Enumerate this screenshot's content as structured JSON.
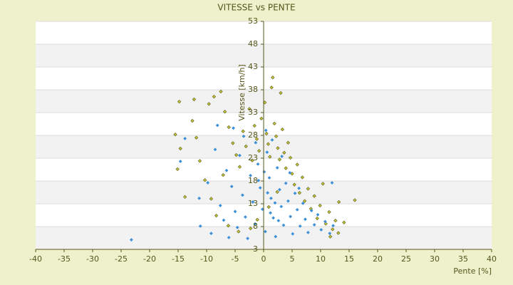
{
  "chart_data": {
    "type": "scatter",
    "title": "VITESSE vs PENTE",
    "x_label": "Pente [%]",
    "y_label": "Vitesse [km/h]",
    "xlim": [
      -40,
      40
    ],
    "xticks": [
      -40,
      -35,
      -30,
      -25,
      -20,
      -15,
      -10,
      -5,
      0,
      5,
      10,
      15,
      20,
      25,
      30,
      35,
      40
    ],
    "ylim": [
      3,
      53
    ],
    "yticks": [
      3,
      8,
      13,
      18,
      23,
      28,
      33,
      38,
      43,
      48,
      53
    ],
    "grid": true,
    "series": [
      {
        "color": "#c8c832",
        "x": [
          -14.8,
          -15.5,
          -14.6,
          -15.1,
          -12.2,
          -12.5,
          -11.8,
          -11.2,
          -10.3,
          -9.6,
          -8.7,
          -7.5,
          -6.8,
          -6.1,
          -5.4,
          -4.8,
          -4.2,
          -3.6,
          -3.1,
          -2.5,
          -2.0,
          -1.6,
          -1.2,
          -0.8,
          -0.4,
          0.2,
          0.5,
          0.8,
          1.1,
          1.4,
          1.6,
          1.9,
          2.2,
          2.5,
          2.8,
          3.0,
          3.3,
          3.6,
          3.9,
          4.3,
          4.7,
          5.0,
          5.4,
          5.9,
          6.3,
          6.8,
          7.2,
          7.8,
          8.3,
          8.9,
          9.4,
          9.9,
          10.4,
          10.9,
          11.5,
          12.1,
          12.6,
          13.2,
          14.1,
          16.0,
          -8.3,
          -6.2,
          -4.4,
          -2.3,
          -1.1,
          0.9,
          2.4,
          -9.2,
          -13.8,
          -7.1,
          13.1,
          11.7
        ],
        "values": [
          35.4,
          28.2,
          25.1,
          20.6,
          35.9,
          31.2,
          27.5,
          22.4,
          18.2,
          34.9,
          36.5,
          37.6,
          33.2,
          29.8,
          26.3,
          23.7,
          21.1,
          28.9,
          25.6,
          33.8,
          22.5,
          30.1,
          27.2,
          24.6,
          31.7,
          35.2,
          28.4,
          26.1,
          23.3,
          38.5,
          40.7,
          30.6,
          27.8,
          25.2,
          22.7,
          37.3,
          29.3,
          24.2,
          20.8,
          26.4,
          23.1,
          19.6,
          17.2,
          21.6,
          15.4,
          18.8,
          13.6,
          16.3,
          11.9,
          14.7,
          9.8,
          12.6,
          17.4,
          8.6,
          11.2,
          7.4,
          9.3,
          13.4,
          8.9,
          13.8,
          10.4,
          8.2,
          6.9,
          7.6,
          9.5,
          12.3,
          15.6,
          14.1,
          14.5,
          19.3,
          6.6,
          5.8
        ]
      },
      {
        "color": "#3a8fd8",
        "x": [
          -23.2,
          -14.6,
          -13.8,
          -11.3,
          -11.1,
          -9.8,
          -9.2,
          -8.5,
          -7.6,
          -7.0,
          -6.5,
          -6.1,
          -5.6,
          -5.0,
          -4.6,
          -4.2,
          -3.7,
          -3.2,
          -2.8,
          -2.3,
          -1.9,
          -1.5,
          -1.0,
          -0.6,
          -0.2,
          0.3,
          0.6,
          1.0,
          1.3,
          1.7,
          2.1,
          2.4,
          2.8,
          3.1,
          3.5,
          3.9,
          4.3,
          4.7,
          5.1,
          5.5,
          5.9,
          6.4,
          6.9,
          7.3,
          7.8,
          8.4,
          8.9,
          9.5,
          10.1,
          10.8,
          11.6,
          12.2,
          12.0,
          -5.3,
          -3.5,
          -1.4,
          0.4,
          1.5,
          -8.1,
          3.2,
          0.1,
          0.7,
          1.2,
          2.0,
          2.6,
          -0.9,
          4.6,
          6.2
        ],
        "values": [
          5.1,
          22.3,
          27.3,
          14.2,
          8.1,
          17.6,
          6.5,
          24.9,
          12.6,
          9.4,
          20.3,
          5.6,
          16.8,
          11.3,
          7.8,
          23.6,
          14.9,
          10.1,
          5.4,
          19.2,
          13.4,
          8.6,
          21.7,
          16.5,
          11.8,
          6.9,
          24.3,
          18.7,
          14.2,
          9.9,
          5.8,
          20.9,
          16.1,
          12.4,
          8.3,
          17.5,
          13.6,
          10.2,
          6.4,
          15.3,
          11.7,
          8.1,
          13.1,
          9.6,
          6.7,
          11.5,
          8.4,
          10.6,
          7.3,
          9.1,
          6.5,
          8.2,
          17.6,
          29.6,
          27.8,
          26.4,
          29.1,
          27.0,
          30.2,
          23.4,
          20.0,
          15.4,
          11.0,
          13.2,
          9.3,
          18.1,
          19.8,
          16.4
        ]
      }
    ]
  }
}
